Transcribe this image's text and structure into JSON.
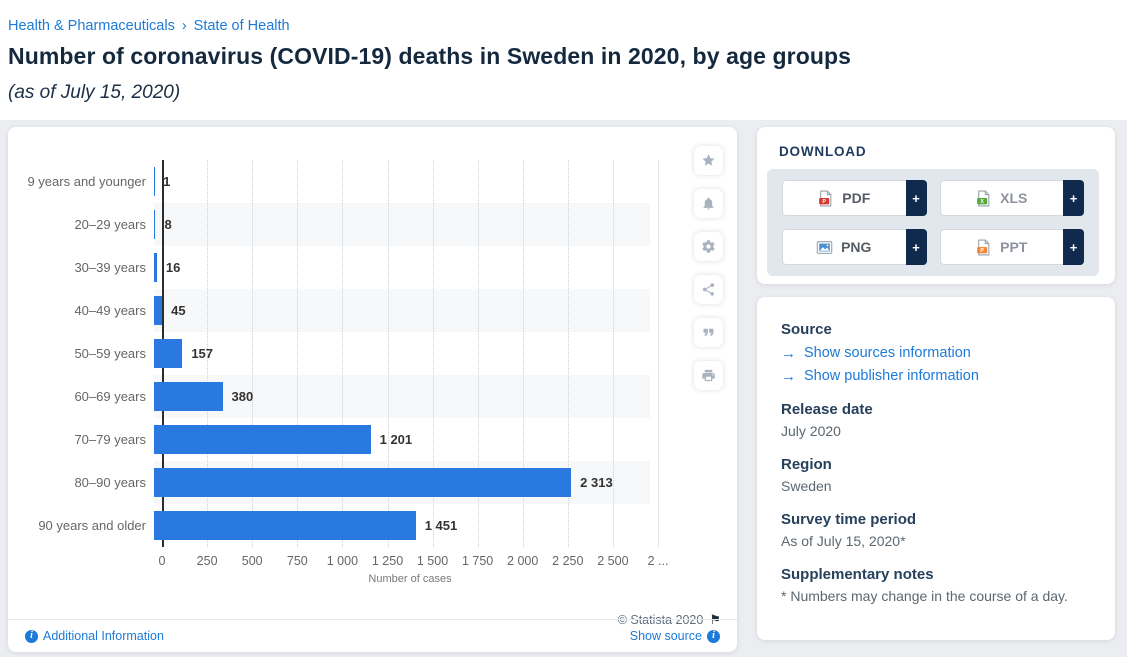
{
  "breadcrumb": {
    "separator": "›",
    "items": [
      {
        "label": "Health & Pharmaceuticals"
      },
      {
        "label": "State of Health"
      }
    ]
  },
  "header": {
    "title": "Number of coronavirus (COVID-19) deaths in Sweden in 2020, by age groups",
    "subtitle": "(as of July 15, 2020)"
  },
  "chart_data": {
    "type": "bar",
    "orientation": "horizontal",
    "title": "Number of coronavirus (COVID-19) deaths in Sweden in 2020, by age groups (as of July 15, 2020)",
    "categories": [
      "9 years and younger",
      "20–29 years",
      "30–39 years",
      "40–49 years",
      "50–59 years",
      "60–69 years",
      "70–79 years",
      "80–90 years",
      "90 years and older"
    ],
    "values": [
      1,
      8,
      16,
      45,
      157,
      380,
      1201,
      2313,
      1451
    ],
    "value_labels": [
      "1",
      "8",
      "16",
      "45",
      "157",
      "380",
      "1 201",
      "2 313",
      "1 451"
    ],
    "xlabel": "Number of cases",
    "ylabel": "",
    "xlim": [
      0,
      2750
    ],
    "xticks": [
      0,
      250,
      500,
      750,
      1000,
      1250,
      1500,
      1750,
      2000,
      2250,
      2500,
      2750
    ],
    "xtick_labels": [
      "0",
      "250",
      "500",
      "750",
      "1 000",
      "1 250",
      "1 500",
      "1 750",
      "2 000",
      "2 250",
      "2 500",
      "2 ..."
    ],
    "grid": "vertical-dotted",
    "legend": false,
    "bar_color": "#2a79e0",
    "zebra_color": "#f7f8f9"
  },
  "toolbar": {
    "buttons": [
      {
        "icon": "star-icon",
        "name": "favorite"
      },
      {
        "icon": "bell-icon",
        "name": "alert"
      },
      {
        "icon": "gear-icon",
        "name": "settings"
      },
      {
        "icon": "share-icon",
        "name": "share"
      },
      {
        "icon": "quote-icon",
        "name": "cite"
      },
      {
        "icon": "print-icon",
        "name": "print"
      }
    ]
  },
  "chart_footer": {
    "copyright": "© Statista 2020",
    "flag_icon": "⚑",
    "additional_information": "Additional Information",
    "show_source": "Show source"
  },
  "download": {
    "heading": "DOWNLOAD",
    "buttons": [
      {
        "label": "PDF",
        "type": "pdf",
        "plus": "+",
        "label_color": "#565c66",
        "icon_color": "#d6382d"
      },
      {
        "label": "XLS",
        "type": "xls",
        "plus": "+",
        "label_color": "#8d939d",
        "icon_color": "#57a83e"
      },
      {
        "label": "PNG",
        "type": "png",
        "plus": "+",
        "label_color": "#565c66",
        "icon_color": "#4a90d9"
      },
      {
        "label": "PPT",
        "type": "ppt",
        "plus": "+",
        "label_color": "#8d939d",
        "icon_color": "#f0883a"
      }
    ]
  },
  "details": {
    "source_heading": "Source",
    "source_links": [
      {
        "label": "Show sources information"
      },
      {
        "label": "Show publisher information"
      }
    ],
    "arrow_icon": "→",
    "sections": [
      {
        "heading": "Release date",
        "value": "July 2020"
      },
      {
        "heading": "Region",
        "value": "Sweden"
      },
      {
        "heading": "Survey time period",
        "value": "As of July 15, 2020*"
      },
      {
        "heading": "Supplementary notes",
        "value": "* Numbers may change in the course of a day."
      }
    ]
  },
  "icons": {
    "info": "i"
  },
  "colors": {
    "accent_blue": "#1d7ad8",
    "bar_blue": "#2a79e0",
    "navy": "#0f2a4c",
    "title_navy": "#15293e",
    "page_background": "#ecedf1"
  }
}
